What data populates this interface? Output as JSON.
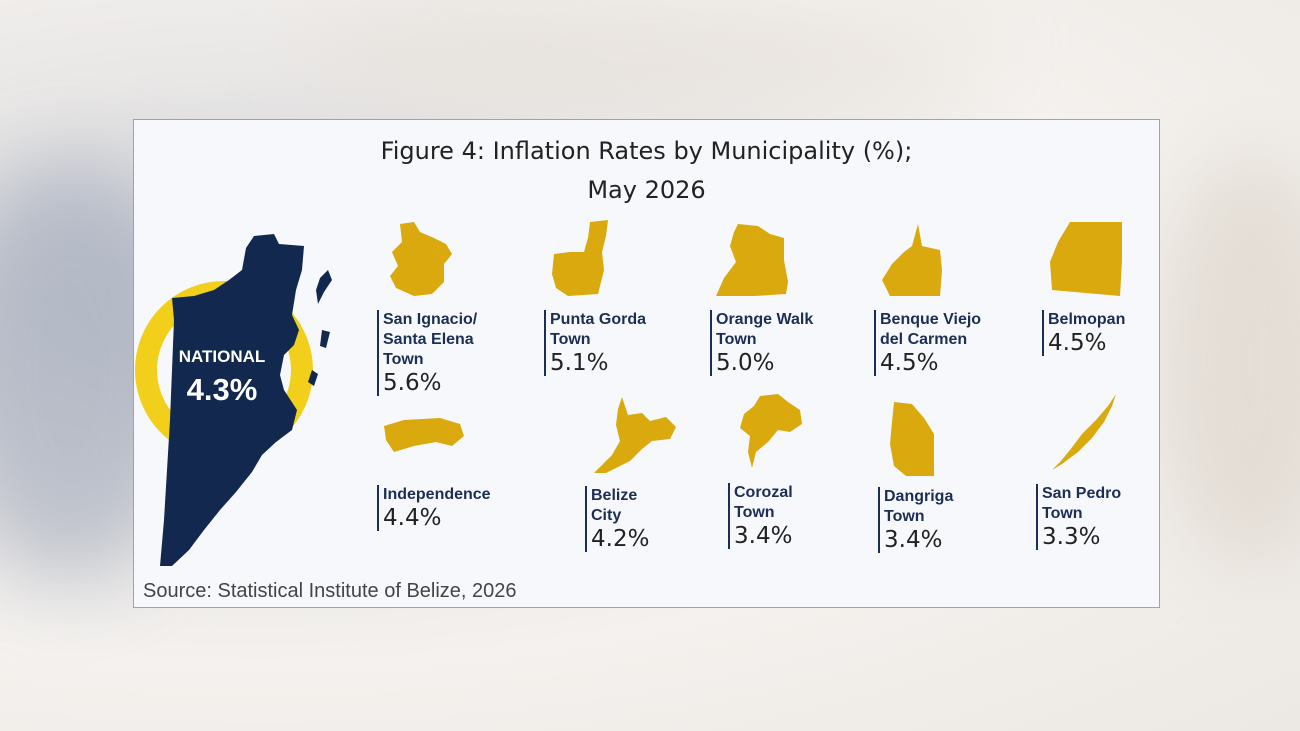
{
  "figure": {
    "title_line1": "Figure 4: Inflation Rates by Municipality (%);",
    "title_line2": "May 2026",
    "source": "Source: Statistical Institute of Belize, 2026"
  },
  "colors": {
    "map_navy": "#13284f",
    "municipality_gold": "#d9a90d",
    "ring_yellow": "#f1cf1a",
    "label_navy": "#1c2e55"
  },
  "national": {
    "label": "NATIONAL",
    "value": "4.3%"
  },
  "chart_data": {
    "type": "table",
    "title": "Figure 4: Inflation Rates by Municipality (%); May 2026",
    "national": 4.3,
    "categories": [
      "San Ignacio/ Santa Elena Town",
      "Punta Gorda Town",
      "Orange Walk Town",
      "Benque Viejo del Carmen",
      "Belmopan",
      "Independence",
      "Belize City",
      "Corozal Town",
      "Dangriga Town",
      "San Pedro Town"
    ],
    "values": [
      5.6,
      5.1,
      5.0,
      4.5,
      4.5,
      4.4,
      4.2,
      3.4,
      3.4,
      3.3
    ],
    "unit": "%"
  },
  "municipalities": [
    {
      "name": "San Ignacio/\nSanta Elena\nTown",
      "value": "5.6%",
      "icon": "san-ignacio-shape-icon"
    },
    {
      "name": "Punta Gorda\nTown",
      "value": "5.1%",
      "icon": "punta-gorda-shape-icon"
    },
    {
      "name": "Orange Walk\nTown",
      "value": "5.0%",
      "icon": "orange-walk-shape-icon"
    },
    {
      "name": "Benque Viejo\ndel Carmen",
      "value": "4.5%",
      "icon": "benque-viejo-shape-icon"
    },
    {
      "name": "Belmopan",
      "value": "4.5%",
      "icon": "belmopan-shape-icon"
    },
    {
      "name": "Independence",
      "value": "4.4%",
      "icon": "independence-shape-icon"
    },
    {
      "name": "Belize\nCity",
      "value": "4.2%",
      "icon": "belize-city-shape-icon"
    },
    {
      "name": "Corozal\nTown",
      "value": "3.4%",
      "icon": "corozal-shape-icon"
    },
    {
      "name": "Dangriga\nTown",
      "value": "3.4%",
      "icon": "dangriga-shape-icon"
    },
    {
      "name": "San Pedro\nTown",
      "value": "3.3%",
      "icon": "san-pedro-shape-icon"
    }
  ]
}
